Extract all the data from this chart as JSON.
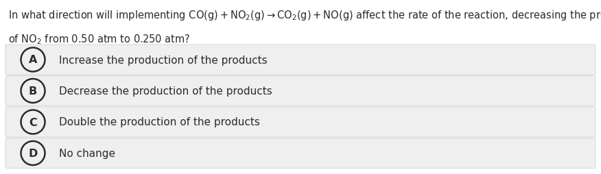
{
  "bg_color": "#ffffff",
  "text_color": "#2a2a2a",
  "option_bg": "#efefef",
  "option_border": "#d0d0d0",
  "question_parts": [
    {
      "text": "In what direction will implementing ",
      "math": false
    },
    {
      "text": "CO(g) + NO$_{2}$(g) → CO$_{2}$(g) + NO(g)",
      "math": true
    },
    {
      "text": " affect the rate of the reaction, decreasing the pressure",
      "math": false
    }
  ],
  "question_line2": "of NO$_{2}$ from 0.50 atm to 0.250 atm?",
  "options": [
    {
      "label": "A",
      "text": "Increase the production of the products"
    },
    {
      "label": "B",
      "text": "Decrease the production of the products"
    },
    {
      "label": "C",
      "text": "Double the production of the products"
    },
    {
      "label": "D",
      "text": "No change"
    }
  ],
  "fig_width": 8.76,
  "fig_height": 2.55,
  "dpi": 100,
  "font_size_question": 10.5,
  "font_size_options": 11.0,
  "font_size_label": 11.5
}
